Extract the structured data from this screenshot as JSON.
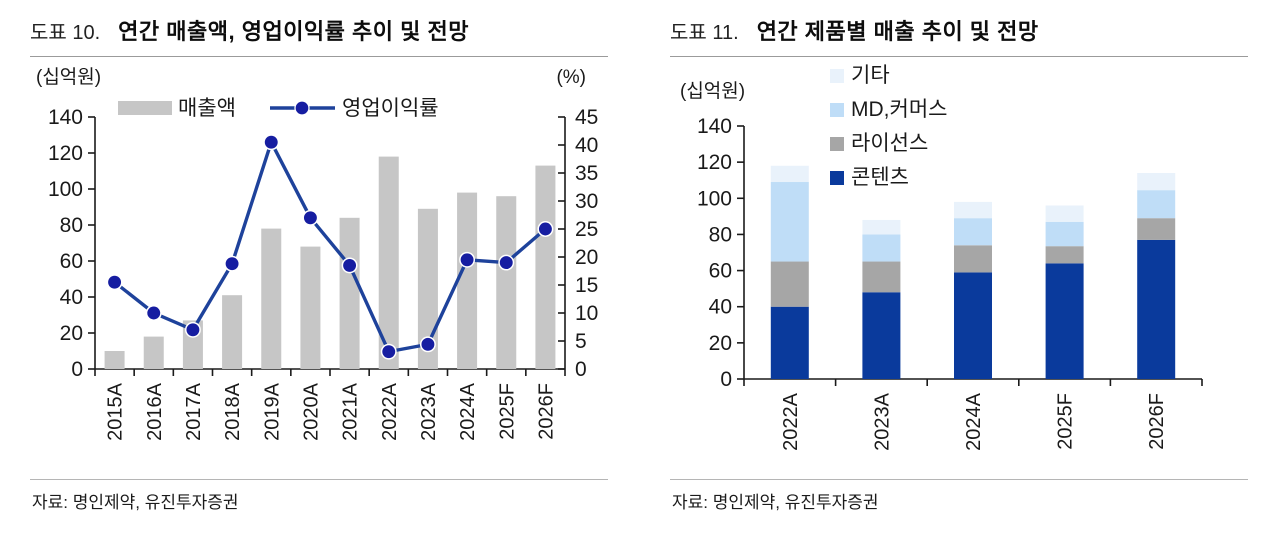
{
  "figures": [
    {
      "label": "도표 10.",
      "title": "연간 매출액, 영업이익률 추이 및 전망",
      "source": "자료: 명인제약, 유진투자증권"
    },
    {
      "label": "도표 11.",
      "title": "연간 제품별 매출 추이 및 전망",
      "source": "자료: 명인제약, 유진투자증권"
    }
  ],
  "colors": {
    "bar_gray": "#c6c6c6",
    "line_navy": "#1e429b",
    "marker_navy": "#161da1",
    "stack_content_blue": "#0a3a9c",
    "stack_license_gray": "#a6a6a6",
    "stack_md_lightblue": "#bfddf7",
    "stack_etc_paleblue": "#e9f2fb",
    "axis": "#1a1a1a"
  },
  "chart_data": [
    {
      "type": "bar",
      "subtype": "combo-bar-line",
      "title": "연간 매출액, 영업이익률 추이 및 전망",
      "categories": [
        "2015A",
        "2016A",
        "2017A",
        "2018A",
        "2019A",
        "2020A",
        "2021A",
        "2022A",
        "2023A",
        "2024A",
        "2025F",
        "2026F"
      ],
      "series": [
        {
          "name": "매출액",
          "type": "bar",
          "axis": "left",
          "color": "#c6c6c6",
          "values": [
            10,
            18,
            27,
            41,
            78,
            68,
            84,
            118,
            89,
            98,
            96,
            113
          ]
        },
        {
          "name": "영업이익률",
          "type": "line",
          "axis": "right",
          "color": "#1e429b",
          "marker_color": "#161da1",
          "values": [
            15.5,
            10,
            7,
            18.8,
            40.5,
            27,
            18.5,
            3.1,
            4.4,
            19.5,
            19,
            25
          ]
        }
      ],
      "axis_left": {
        "label": "(십억원)",
        "min": 0,
        "max": 140,
        "step": 20
      },
      "axis_right": {
        "label": "(%)",
        "min": 0,
        "max": 45,
        "step": 5
      },
      "legend_position": "top",
      "grid": false
    },
    {
      "type": "bar",
      "subtype": "stacked-bar",
      "title": "연간 제품별 매출 추이 및 전망",
      "categories": [
        "2022A",
        "2023A",
        "2024A",
        "2025F",
        "2026F"
      ],
      "series": [
        {
          "name": "콘텐츠",
          "color": "#0a3a9c",
          "values": [
            40,
            48,
            59,
            64,
            77
          ]
        },
        {
          "name": "라이선스",
          "color": "#a6a6a6",
          "values": [
            25,
            17,
            15,
            9.5,
            12
          ]
        },
        {
          "name": "MD,커머스",
          "color": "#bfddf7",
          "values": [
            44,
            15,
            15,
            13.5,
            15.5
          ]
        },
        {
          "name": "기타",
          "color": "#e9f2fb",
          "values": [
            9,
            8,
            9,
            9,
            9.5
          ]
        }
      ],
      "legend_order_top_to_bottom": [
        "기타",
        "MD,커머스",
        "라이선스",
        "콘텐츠"
      ],
      "axis_left": {
        "label": "(십억원)",
        "min": 0,
        "max": 140,
        "step": 20
      },
      "legend_position": "top",
      "grid": false
    }
  ]
}
